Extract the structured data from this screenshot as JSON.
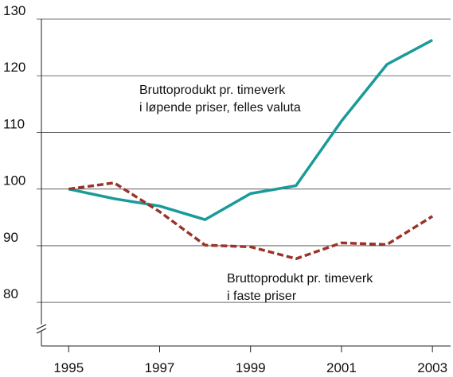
{
  "chart_data": {
    "type": "line",
    "x": [
      1995,
      1996,
      1997,
      1998,
      1999,
      2000,
      2001,
      2002,
      2003
    ],
    "series": [
      {
        "name": "Bruttoprodukt pr. timeverk i løpende priser, felles valuta",
        "color": "#1a9a9a",
        "dash": false,
        "values": [
          100,
          98.3,
          97,
          94.6,
          99.2,
          100.6,
          112,
          122,
          126.3
        ]
      },
      {
        "name": "Bruttoprodukt pr. timeverk i faste priser",
        "color": "#9b3328",
        "dash": true,
        "values": [
          100,
          101.1,
          96,
          90.1,
          89.8,
          87.7,
          90.5,
          90.2,
          95.2
        ]
      }
    ],
    "annotations": [
      {
        "lines": [
          "Bruttoprodukt pr. timeverk",
          "i løpende priser, felles valuta"
        ]
      },
      {
        "lines": [
          "Bruttoprodukt pr. timeverk",
          "i faste priser"
        ]
      }
    ],
    "xlim": [
      1994.4,
      2003.4
    ],
    "xticks": [
      1995,
      1997,
      1999,
      2001,
      2003
    ],
    "ylim": [
      72.3,
      130
    ],
    "yticks": [
      80,
      90,
      100,
      110,
      120,
      130
    ],
    "grid": true
  }
}
